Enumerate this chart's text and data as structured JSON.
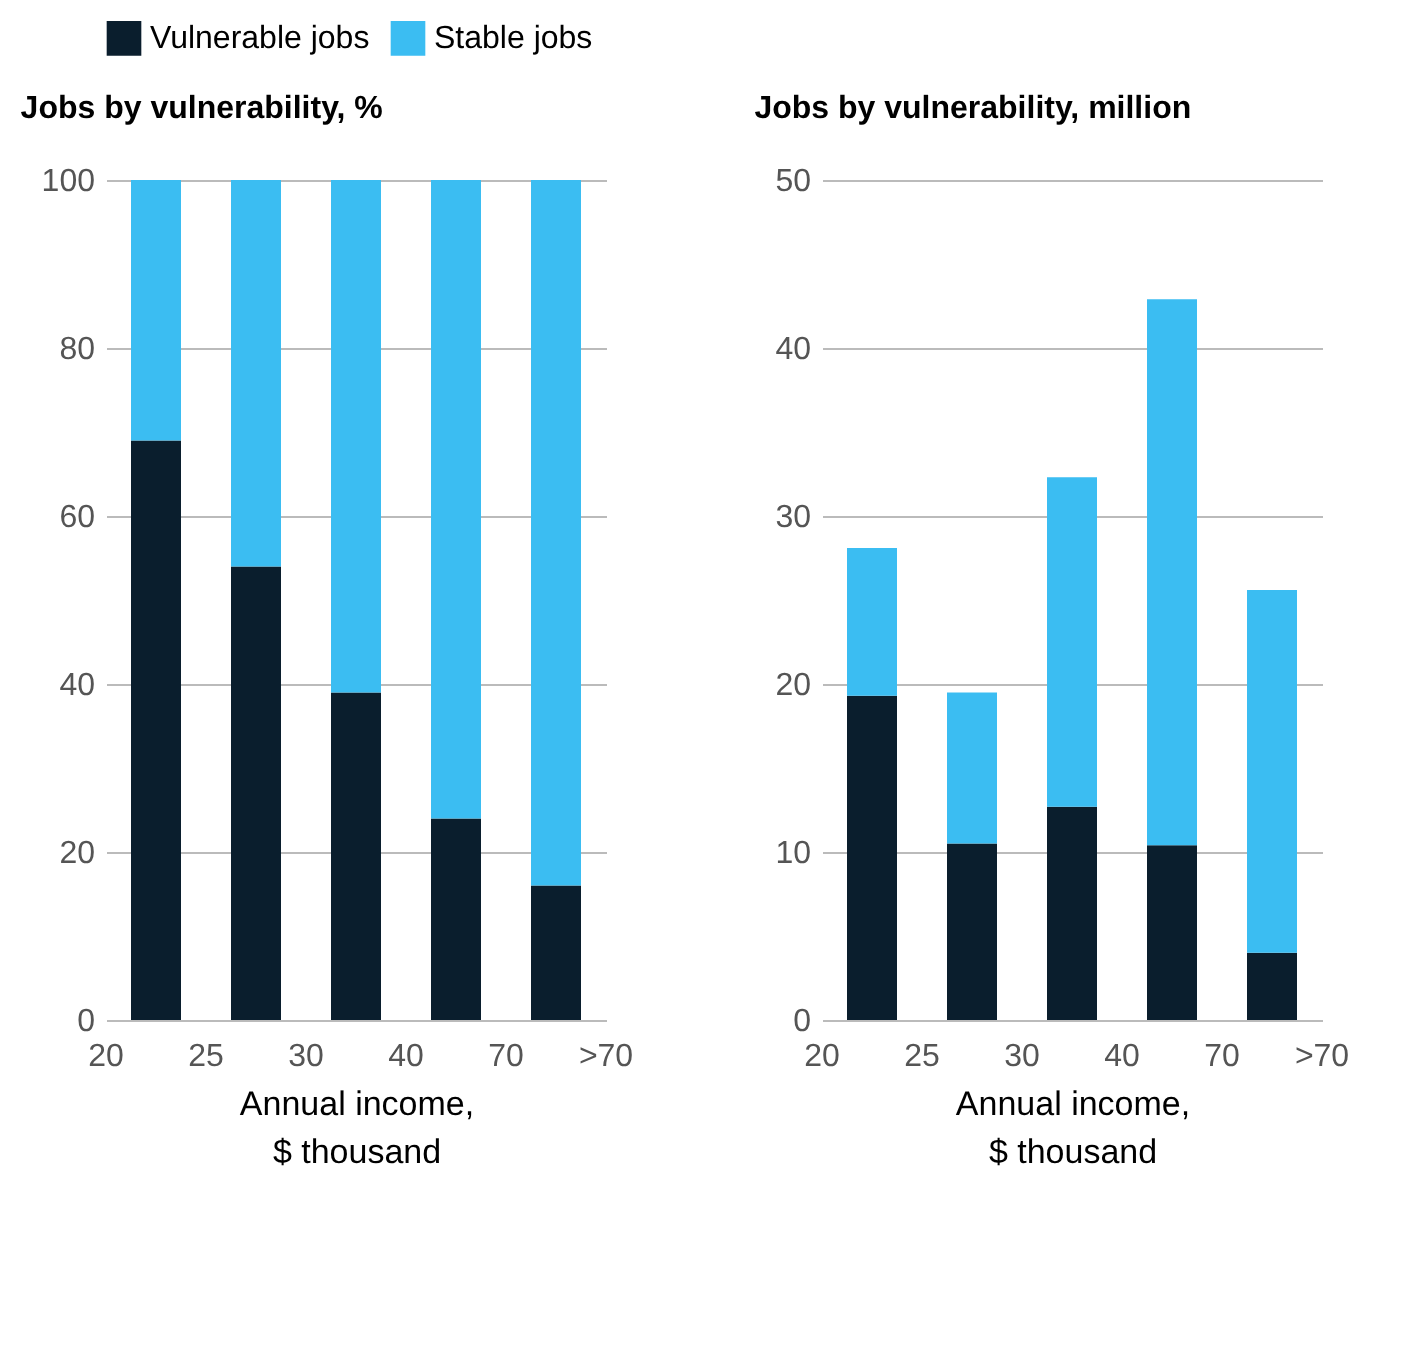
{
  "chart_data": [
    {
      "type": "bar",
      "stacked": true,
      "title": "Jobs by vulnerability, %",
      "xlabel": "Annual income,\n$ thousand",
      "categories": [
        null,
        null,
        null,
        null,
        null
      ],
      "annotations": [
        "20",
        "25",
        "30",
        "40",
        "70",
        ">70"
      ],
      "ylim": [
        0,
        100
      ],
      "yticks": [
        0,
        20,
        40,
        60,
        80,
        100
      ],
      "grid": "y",
      "legend": "top left",
      "series": [
        {
          "name": "Vulnerable jobs",
          "color": "#0a1e2d",
          "values": [
            69,
            54,
            39,
            24,
            16
          ]
        },
        {
          "name": "Stable jobs",
          "color": "#3bbdf2",
          "values": [
            31,
            46,
            61,
            76,
            84
          ]
        }
      ]
    },
    {
      "type": "bar",
      "stacked": true,
      "title": "Jobs by vulnerability,  million",
      "xlabel": "Annual income,\n$ thousand",
      "categories": [
        null,
        null,
        null,
        null,
        null
      ],
      "annotations": [
        "20",
        "25",
        "30",
        "40",
        "70",
        ">70"
      ],
      "ylim": [
        0,
        50
      ],
      "yticks": [
        0,
        10,
        20,
        30,
        40,
        50
      ],
      "grid": "y",
      "legend": "top left",
      "series": [
        {
          "name": "Vulnerable jobs",
          "color": "#0a1e2d",
          "values": [
            19.3,
            10.5,
            12.7,
            10.4,
            4.0
          ]
        },
        {
          "name": "Stable jobs",
          "color": "#3bbdf2",
          "values": [
            8.8,
            9.0,
            19.6,
            32.5,
            21.6
          ]
        }
      ]
    }
  ]
}
